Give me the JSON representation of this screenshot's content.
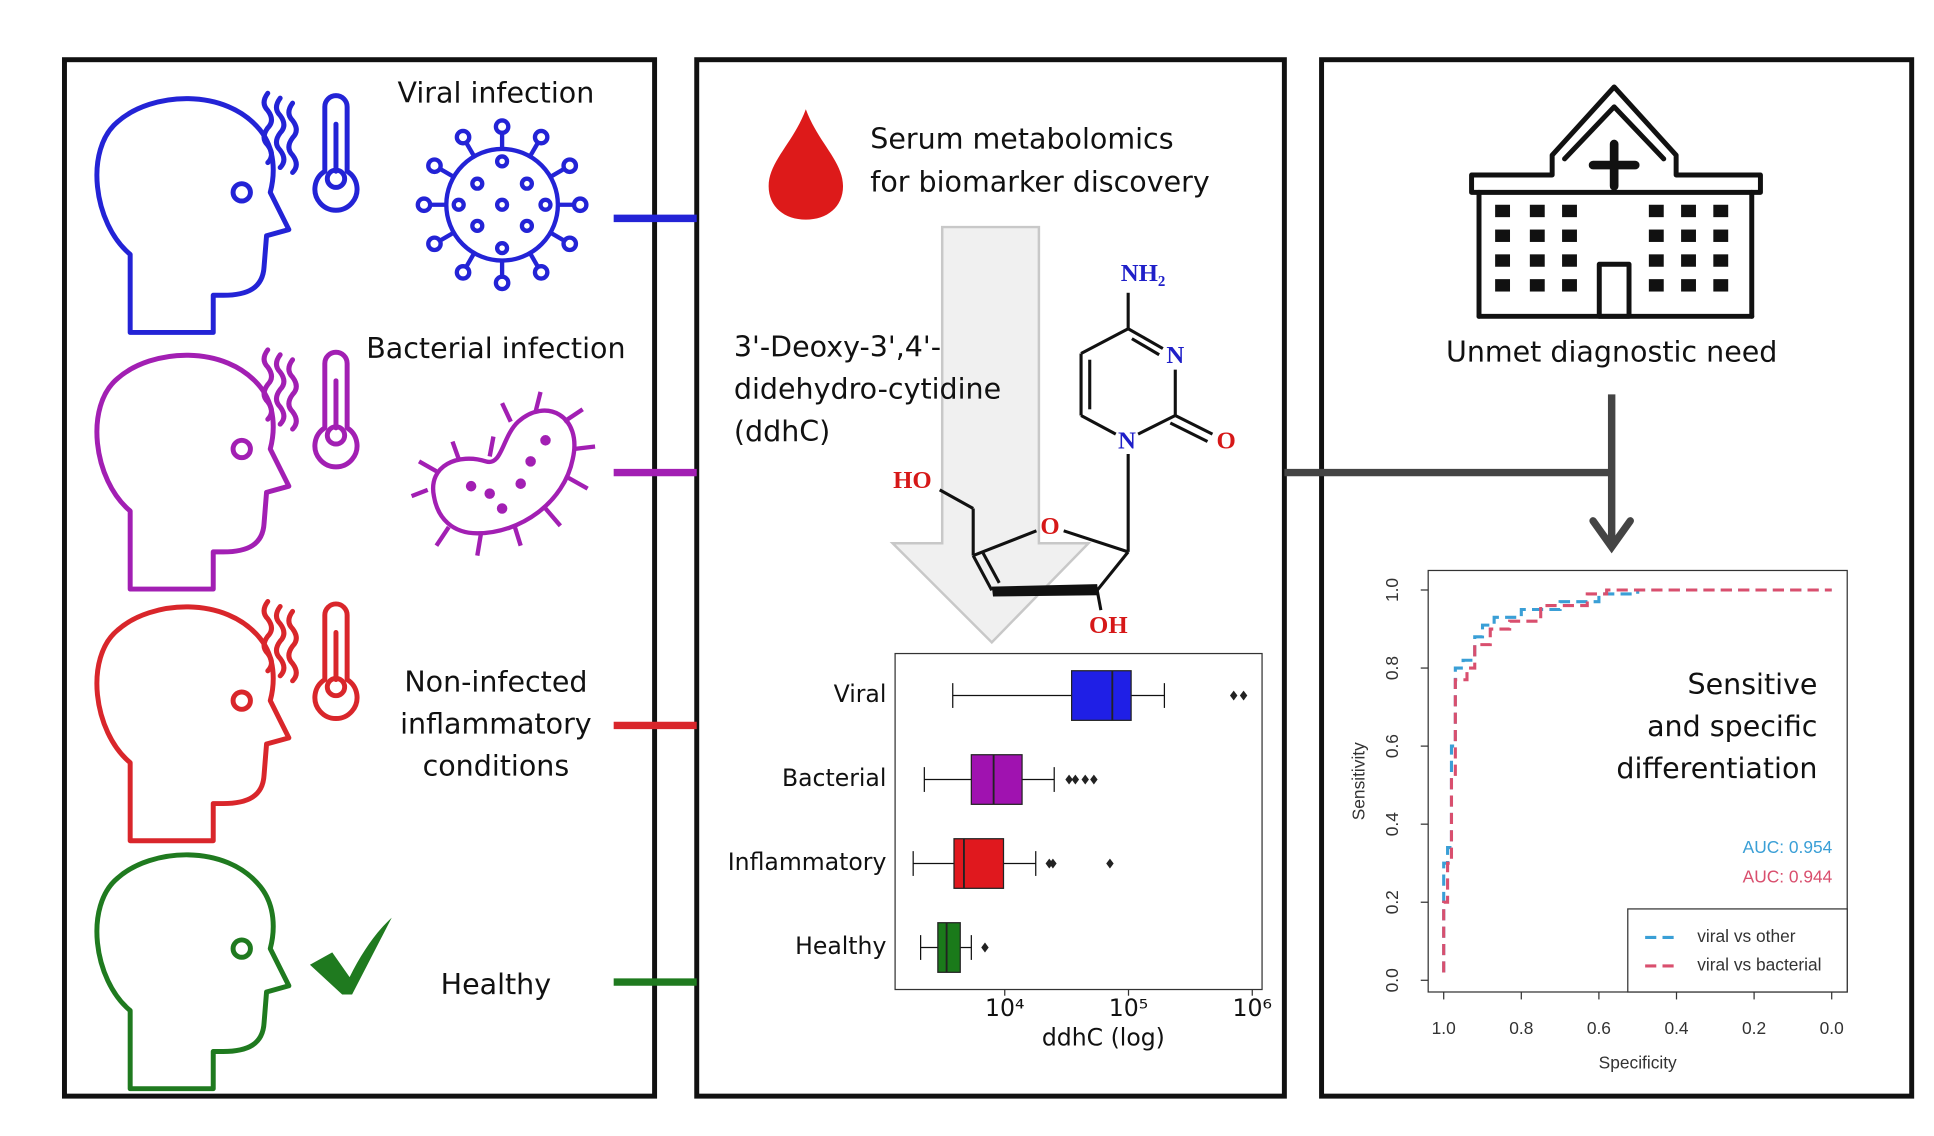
{
  "conditions": [
    {
      "lines": [
        "Viral infection"
      ],
      "color": "#2323d6"
    },
    {
      "lines": [
        "Bacterial infection"
      ],
      "color": "#a21fb3"
    },
    {
      "lines": [
        "Non-infected",
        "inflammatory",
        "conditions"
      ],
      "color": "#d9262b"
    },
    {
      "lines": [
        "Healthy"
      ],
      "color": "#1f7a1f"
    }
  ],
  "metabolomics": {
    "title_lines": [
      "Serum metabolomics",
      "for biomarker discovery"
    ],
    "compound_lines": [
      "3'-Deoxy-3',4'-",
      "didehydro-cytidine",
      "(ddhC)"
    ],
    "molecule": {
      "amine": "NH₂",
      "n3": "N",
      "n1": "N",
      "carbonyl_o": "O",
      "hydroxymethyl": "HO",
      "ring_o": "O",
      "hydroxyl": "OH"
    }
  },
  "boxplot": {
    "type": "box",
    "categories": [
      "Viral",
      "Bacterial",
      "Inflammatory",
      "Healthy"
    ],
    "boxes": [
      {
        "color": "#1f1fe6",
        "whislo": 3800,
        "q1": 34700,
        "med": 74000,
        "q3": 105000,
        "whishi": 195000,
        "fliers": [
          708000,
          851000
        ]
      },
      {
        "color": "#a012b0",
        "whislo": 2240,
        "q1": 5370,
        "med": 8130,
        "q3": 13800,
        "whishi": 25100,
        "fliers": [
          33100,
          37200,
          44700,
          52500
        ]
      },
      {
        "color": "#e0181e",
        "whislo": 1820,
        "q1": 3890,
        "med": 4680,
        "q3": 9770,
        "whishi": 17800,
        "fliers": [
          22900,
          24500,
          70800
        ]
      },
      {
        "color": "#1a7a1a",
        "whislo": 2090,
        "q1": 2880,
        "med": 3390,
        "q3": 4370,
        "whishi": 5370,
        "fliers": [
          6920
        ]
      }
    ],
    "xlabel": "ddhC (log)",
    "log_scale": true,
    "xlim": [
      1300,
      1200000
    ],
    "xticks": [
      {
        "value": 10000,
        "label": "10⁴"
      },
      {
        "value": 100000,
        "label": "10⁵"
      },
      {
        "value": 1000000,
        "label": "10⁶"
      }
    ]
  },
  "diagnostics": {
    "title": "Unmet diagnostic need"
  },
  "roc": {
    "type": "line",
    "annotation_lines": [
      "Sensitive",
      "and specific",
      "differentiation"
    ],
    "xlabel": "Specificity",
    "ylabel": "Sensitivity",
    "xlim": [
      1.04,
      -0.04
    ],
    "ylim": [
      -0.03,
      1.05
    ],
    "xticks": [
      {
        "value": 1,
        "label": "1.0"
      },
      0.8,
      0.6,
      0.4,
      0.2,
      {
        "value": 0,
        "label": "0.0"
      }
    ],
    "yticks": [
      {
        "value": 0,
        "label": "0.0"
      },
      0.2,
      0.4,
      0.6,
      0.8,
      {
        "value": 1,
        "label": "1.0"
      }
    ],
    "legend": "lower right",
    "series": [
      {
        "name": "viral vs other",
        "color": "#3a9fd6",
        "auc_label": "AUC: 0.954",
        "x": [
          1,
          1,
          0.99,
          0.99,
          0.98,
          0.98,
          0.97,
          0.97,
          0.95,
          0.95,
          0.92,
          0.92,
          0.9,
          0.9,
          0.87,
          0.87,
          0.8,
          0.8,
          0.7,
          0.7,
          0.6,
          0.6,
          0.5,
          0.5,
          0
        ],
        "values": [
          0.02,
          0.3,
          0.3,
          0.34,
          0.34,
          0.6,
          0.6,
          0.8,
          0.8,
          0.82,
          0.82,
          0.88,
          0.88,
          0.91,
          0.91,
          0.93,
          0.93,
          0.95,
          0.95,
          0.97,
          0.97,
          0.99,
          0.99,
          1,
          1
        ]
      },
      {
        "name": "viral vs bacterial",
        "color": "#d94f6e",
        "auc_label": "AUC: 0.944",
        "x": [
          1,
          1,
          0.99,
          0.99,
          0.98,
          0.98,
          0.97,
          0.97,
          0.94,
          0.94,
          0.92,
          0.92,
          0.88,
          0.88,
          0.83,
          0.83,
          0.75,
          0.75,
          0.63,
          0.63,
          0.58,
          0.58,
          0
        ],
        "values": [
          0.02,
          0.2,
          0.2,
          0.3,
          0.3,
          0.52,
          0.52,
          0.77,
          0.77,
          0.8,
          0.8,
          0.86,
          0.86,
          0.9,
          0.9,
          0.92,
          0.92,
          0.96,
          0.96,
          0.99,
          0.99,
          1,
          1
        ]
      }
    ]
  }
}
